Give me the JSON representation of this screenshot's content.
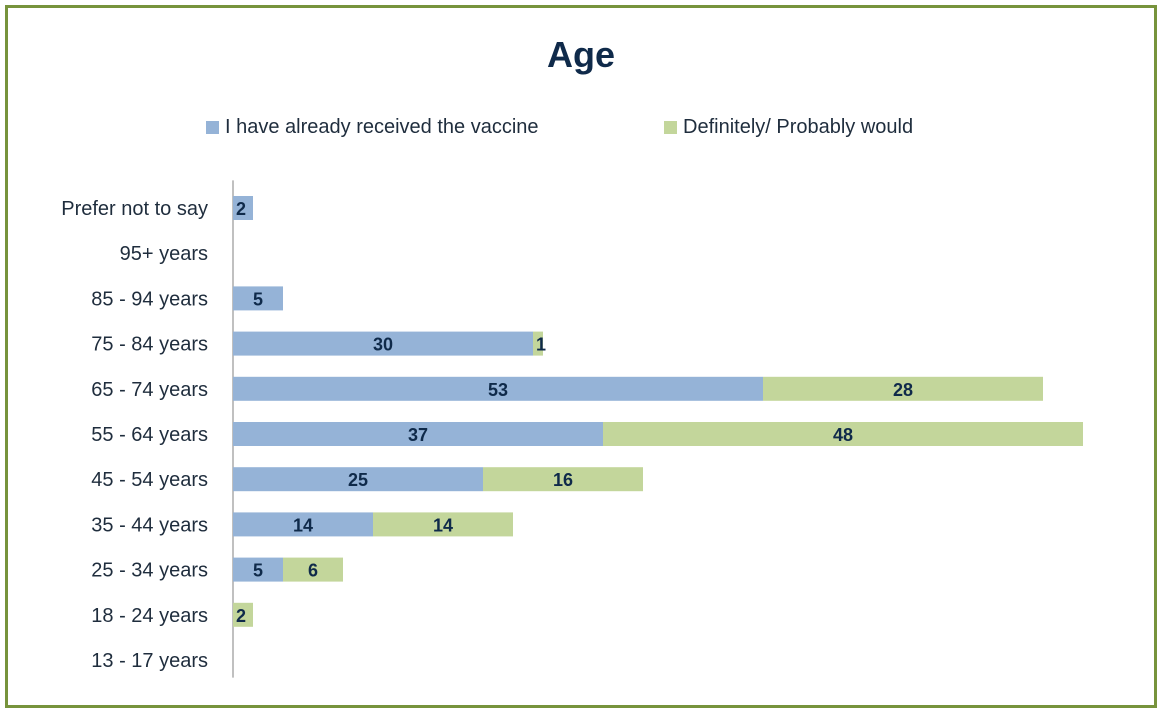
{
  "chart_data": {
    "type": "bar",
    "orientation": "horizontal",
    "stacked": true,
    "title": "Age",
    "legend_position": "top",
    "categories": [
      "Prefer not to say",
      "95+ years",
      "85 - 94 years",
      "75 - 84 years",
      "65 - 74 years",
      "55 - 64 years",
      "45 - 54 years",
      "35 - 44 years",
      "25 - 34 years",
      "18 - 24 years",
      "13 - 17 years"
    ],
    "series": [
      {
        "name": "I have already received the vaccine",
        "color": "#95b3d7",
        "values": [
          2,
          null,
          5,
          30,
          53,
          37,
          25,
          14,
          5,
          null,
          null
        ]
      },
      {
        "name": "Definitely/ Probably would",
        "color": "#c3d69b",
        "values": [
          null,
          null,
          null,
          1,
          28,
          48,
          16,
          14,
          6,
          2,
          null
        ]
      }
    ],
    "xlim": [
      0,
      85
    ],
    "grid": false,
    "frame_color": "#77933c"
  }
}
